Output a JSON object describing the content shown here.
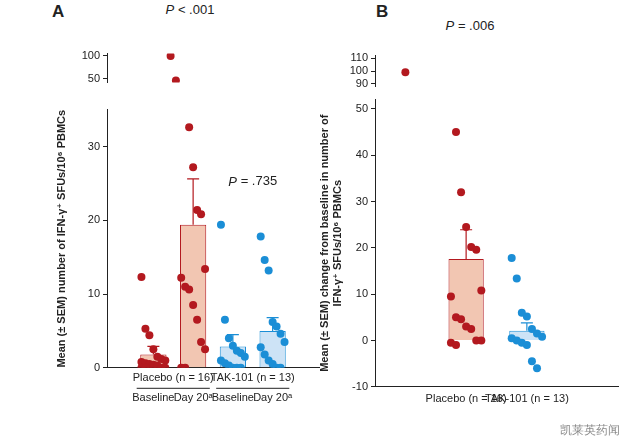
{
  "chart_data": [
    {
      "type": "bar",
      "panel": "A",
      "annotations": [
        "P < .001",
        "P = .735"
      ],
      "categories": [
        "Baseline",
        "Day 20ᵃ",
        "Baseline",
        "Day 20ᵃ"
      ],
      "groups": [
        "Placebo (n = 16)",
        "TAK-101 (n = 13)"
      ],
      "values": [
        1.8,
        19.4,
        2.9,
        5.0
      ],
      "errors": [
        1.1,
        6.2,
        1.6,
        1.8
      ],
      "colors": [
        "#f2c6b2",
        "#f2c6b2",
        "#cde3f6",
        "#cde3f6"
      ],
      "point_colors": [
        "#b3191f",
        "#b3191f",
        "#1b8ed6",
        "#1b8ed6"
      ],
      "points": [
        [
          12.3,
          5.3,
          4.4,
          2.5,
          1.5,
          1.2,
          1.0,
          0.8,
          0.6,
          0.5,
          0.4,
          0.3,
          0,
          0,
          0,
          0
        ],
        [
          100,
          46,
          32.6,
          27.2,
          21.4,
          20.8,
          13.4,
          12.2,
          11,
          10.6,
          8.5,
          6.5,
          3.5,
          2.5,
          0,
          0
        ],
        [
          19.4,
          6.5,
          4,
          3,
          2.3,
          2,
          1.5,
          1,
          0.6,
          0.3,
          0,
          0,
          0
        ],
        [
          17.8,
          14.6,
          13.2,
          6.2,
          5.6,
          4.6,
          3.5,
          2.8,
          1.8,
          1,
          0.5,
          0,
          0
        ]
      ],
      "y_label": "Mean (± SEM) number of IFN-γ⁺ SFUs/10⁶ PBMCs",
      "ylim": [
        0,
        105
      ],
      "y_break": [
        35,
        42
      ],
      "yticks": [
        0,
        10,
        20,
        30,
        50,
        100
      ],
      "grid": false
    },
    {
      "type": "bar",
      "panel": "B",
      "annotations": [
        "P = .006"
      ],
      "categories": [
        "Placebo (n = 16)",
        "TAK-101 (n = 13)"
      ],
      "values": [
        17.6,
        2.1
      ],
      "errors": [
        6.3,
        1.7
      ],
      "colors": [
        "#f2c6b2",
        "#cde3f6"
      ],
      "point_colors": [
        "#b3191f",
        "#1b8ed6"
      ],
      "points": [
        [
          99,
          45,
          32,
          24.5,
          20.2,
          19.6,
          10.8,
          9.5,
          5,
          4.6,
          3,
          2.5,
          0,
          0,
          -0.5,
          -1
        ],
        [
          17.8,
          13.4,
          6,
          5.2,
          2.5,
          1.5,
          0.8,
          0.5,
          0,
          -0.5,
          -1,
          -4.5,
          -6
        ]
      ],
      "y_label": [
        "Mean (± SEM) change from baseline in number of",
        "IFN-γ⁺ SFUs/10⁶ PBMCs"
      ],
      "ylim": [
        -10,
        112
      ],
      "y_break": [
        52,
        88
      ],
      "yticks": [
        -10,
        0,
        10,
        20,
        30,
        40,
        50,
        90,
        100,
        110
      ],
      "grid": false
    }
  ],
  "watermark": "凯莱英药闻"
}
